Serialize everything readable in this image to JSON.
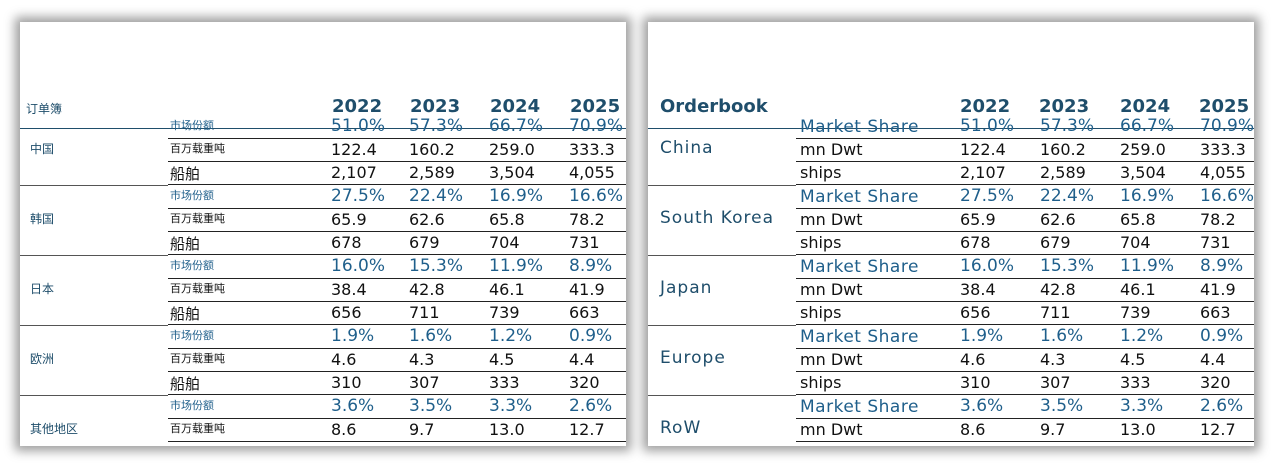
{
  "years": [
    "2022",
    "2023",
    "2024",
    "2025"
  ],
  "cn": {
    "title": "订单簿",
    "groups": [
      {
        "region": "中国",
        "rows": [
          {
            "label": "市场份额",
            "values": [
              "51.0%",
              "57.3%",
              "66.7%",
              "70.9%"
            ]
          },
          {
            "label": "百万载重吨",
            "values": [
              "122.4",
              "160.2",
              "259.0",
              "333.3"
            ]
          },
          {
            "label": "船舶",
            "values": [
              "2,107",
              "2,589",
              "3,504",
              "4,055"
            ]
          }
        ]
      },
      {
        "region": "韩国",
        "rows": [
          {
            "label": "市场份额",
            "values": [
              "27.5%",
              "22.4%",
              "16.9%",
              "16.6%"
            ]
          },
          {
            "label": "百万载重吨",
            "values": [
              "65.9",
              "62.6",
              "65.8",
              "78.2"
            ]
          },
          {
            "label": "船舶",
            "values": [
              "678",
              "679",
              "704",
              "731"
            ]
          }
        ]
      },
      {
        "region": "日本",
        "rows": [
          {
            "label": "市场份额",
            "values": [
              "16.0%",
              "15.3%",
              "11.9%",
              "8.9%"
            ]
          },
          {
            "label": "百万载重吨",
            "values": [
              "38.4",
              "42.8",
              "46.1",
              "41.9"
            ]
          },
          {
            "label": "船舶",
            "values": [
              "656",
              "711",
              "739",
              "663"
            ]
          }
        ]
      },
      {
        "region": "欧洲",
        "rows": [
          {
            "label": "市场份额",
            "values": [
              "1.9%",
              "1.6%",
              "1.2%",
              "0.9%"
            ]
          },
          {
            "label": "百万载重吨",
            "values": [
              "4.6",
              "4.3",
              "4.5",
              "4.4"
            ]
          },
          {
            "label": "船舶",
            "values": [
              "310",
              "307",
              "333",
              "320"
            ]
          }
        ]
      },
      {
        "region": "其他地区",
        "rows": [
          {
            "label": "市场份额",
            "values": [
              "3.6%",
              "3.5%",
              "3.3%",
              "2.6%"
            ]
          },
          {
            "label": "百万载重吨",
            "values": [
              "8.6",
              "9.7",
              "13.0",
              "12.7"
            ]
          }
        ]
      }
    ]
  },
  "en": {
    "title": "Orderbook",
    "groups": [
      {
        "region": "China",
        "rows": [
          {
            "label": "Market Share",
            "values": [
              "51.0%",
              "57.3%",
              "66.7%",
              "70.9%"
            ]
          },
          {
            "label": "mn Dwt",
            "values": [
              "122.4",
              "160.2",
              "259.0",
              "333.3"
            ]
          },
          {
            "label": "ships",
            "values": [
              "2,107",
              "2,589",
              "3,504",
              "4,055"
            ]
          }
        ]
      },
      {
        "region": "South Korea",
        "rows": [
          {
            "label": "Market Share",
            "values": [
              "27.5%",
              "22.4%",
              "16.9%",
              "16.6%"
            ]
          },
          {
            "label": "mn Dwt",
            "values": [
              "65.9",
              "62.6",
              "65.8",
              "78.2"
            ]
          },
          {
            "label": "ships",
            "values": [
              "678",
              "679",
              "704",
              "731"
            ]
          }
        ]
      },
      {
        "region": "Japan",
        "rows": [
          {
            "label": "Market Share",
            "values": [
              "16.0%",
              "15.3%",
              "11.9%",
              "8.9%"
            ]
          },
          {
            "label": "mn Dwt",
            "values": [
              "38.4",
              "42.8",
              "46.1",
              "41.9"
            ]
          },
          {
            "label": "ships",
            "values": [
              "656",
              "711",
              "739",
              "663"
            ]
          }
        ]
      },
      {
        "region": "Europe",
        "rows": [
          {
            "label": "Market Share",
            "values": [
              "1.9%",
              "1.6%",
              "1.2%",
              "0.9%"
            ]
          },
          {
            "label": "mn Dwt",
            "values": [
              "4.6",
              "4.3",
              "4.5",
              "4.4"
            ]
          },
          {
            "label": "ships",
            "values": [
              "310",
              "307",
              "333",
              "320"
            ]
          }
        ]
      },
      {
        "region": "RoW",
        "rows": [
          {
            "label": "Market Share",
            "values": [
              "3.6%",
              "3.5%",
              "3.3%",
              "2.6%"
            ]
          },
          {
            "label": "mn Dwt",
            "values": [
              "8.6",
              "9.7",
              "13.0",
              "12.7"
            ]
          }
        ]
      }
    ]
  },
  "colors": {
    "heading": "#1f4e6b",
    "share": "#1f5f8b",
    "text": "#111111"
  }
}
